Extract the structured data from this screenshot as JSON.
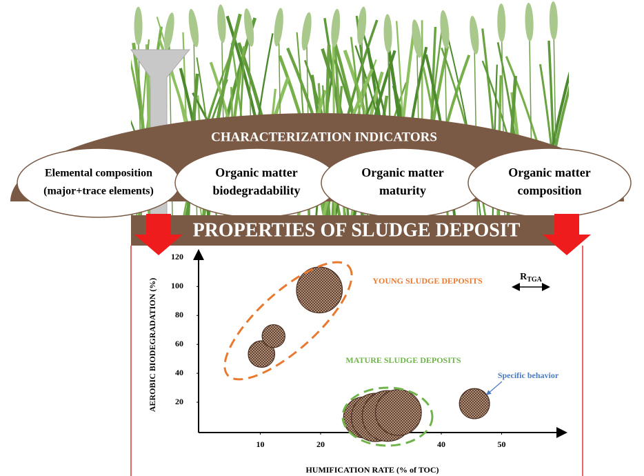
{
  "header": {
    "title": "CHARACTERIZATION  INDICATORS",
    "indicators": [
      {
        "lines": [
          "Elemental composition",
          "(major+trace elements)"
        ]
      },
      {
        "lines": [
          "Organic matter",
          "biodegradability"
        ]
      },
      {
        "lines": [
          "Organic matter",
          "maturity"
        ]
      },
      {
        "lines": [
          "Organic matter",
          "composition"
        ]
      }
    ],
    "banner": "PROPERTIES OF SLUDGE DEPOSIT"
  },
  "chart_data": {
    "type": "bubble",
    "x_label": "HUMIFICATION RATE (% of TOC)",
    "y_label": "AEROBIC BIODEGRADATION (%)",
    "x": [
      10.2,
      12.2,
      19.8,
      27.2,
      29.1,
      31.1,
      32.9,
      45.5
    ],
    "values": [
      53.3,
      65.7,
      97.6,
      9.5,
      9.5,
      10.5,
      12.9,
      19
    ],
    "sizes": [
      2.2,
      1.9,
      3.8,
      3.4,
      4,
      4.2,
      3.8,
      2.5
    ],
    "color": "#c9a68c",
    "xlim": [
      0,
      60
    ],
    "ylim": [
      0,
      124
    ],
    "xticks": [
      10,
      20,
      40,
      50
    ],
    "yticks": [
      20,
      40,
      60,
      80,
      100,
      120
    ],
    "annotations": {
      "young": "YOUNG SLUDGE DEPOSITS",
      "mature": "MATURE SLUDGE DEPOSITS",
      "specific": "Specific behavior"
    },
    "rtga": {
      "main": "R",
      "sub": "TGA"
    }
  }
}
